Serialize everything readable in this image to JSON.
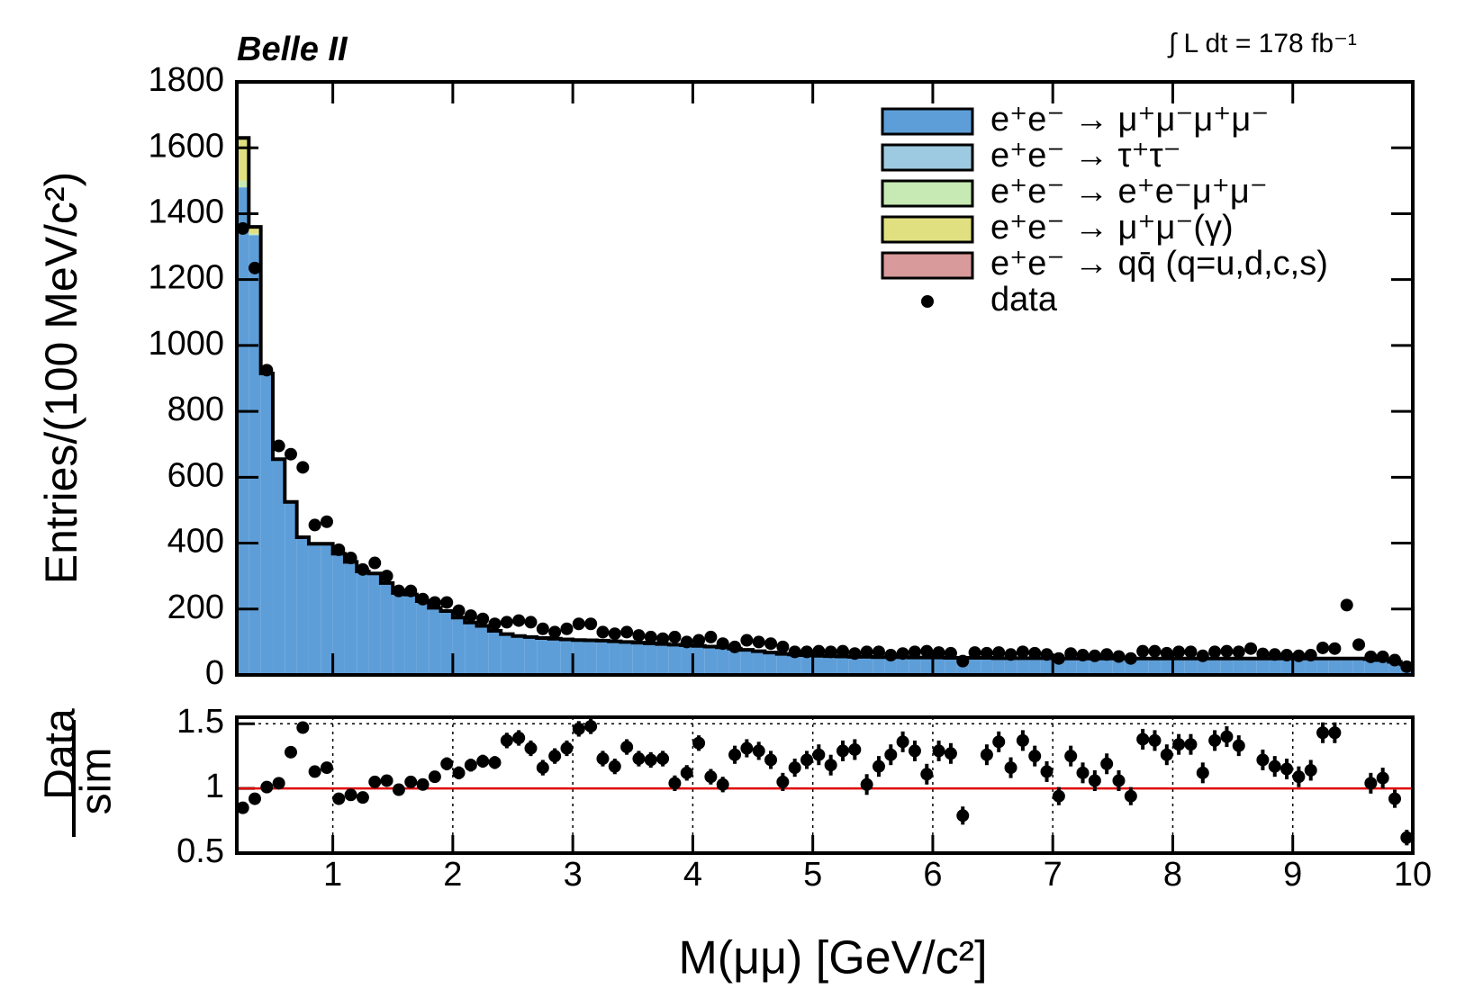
{
  "chart_data": {
    "type": "histogram",
    "title": "Belle II",
    "annotation": "∫ L dt = 178 fb⁻¹",
    "ylabel": "Entries/(100 MeV/c²)",
    "xlabel": "M(μμ) [GeV/c²]",
    "legend": "top right",
    "xlim": [
      0.2,
      10
    ],
    "xticks": [
      1,
      2,
      3,
      4,
      5,
      6,
      7,
      8,
      9,
      10
    ],
    "ylim": [
      0,
      1800
    ],
    "yticks": [
      0,
      200,
      400,
      600,
      800,
      1000,
      1200,
      1400,
      1600,
      1800
    ],
    "bins": [
      0.2,
      0.3,
      0.4,
      0.5,
      0.6,
      0.7,
      0.8,
      0.9,
      1.0,
      1.1,
      1.2,
      1.3,
      1.4,
      1.5,
      1.6,
      1.7,
      1.8,
      1.9,
      2.0,
      2.1,
      2.2,
      2.3,
      2.4,
      2.5,
      2.6,
      2.7,
      2.8,
      2.9,
      3.0,
      3.1,
      3.2,
      3.3,
      3.4,
      3.5,
      3.6,
      3.7,
      3.8,
      3.9,
      4.0,
      4.1,
      4.2,
      4.3,
      4.4,
      4.5,
      4.6,
      4.7,
      4.8,
      4.9,
      5.0,
      5.1,
      5.2,
      5.3,
      5.4,
      5.5,
      5.6,
      5.7,
      5.8,
      5.9,
      6.0,
      6.1,
      6.2,
      6.3,
      6.4,
      6.5,
      6.6,
      6.7,
      6.8,
      6.9,
      7.0,
      7.1,
      7.2,
      7.3,
      7.4,
      7.5,
      7.6,
      7.7,
      7.8,
      7.9,
      8.0,
      8.1,
      8.2,
      8.3,
      8.4,
      8.5,
      8.6,
      8.7,
      8.8,
      8.9,
      9.0,
      9.1,
      9.2,
      9.3,
      9.4,
      9.5,
      9.6,
      9.7,
      9.8,
      9.9,
      10.0
    ],
    "series": [
      {
        "name": "e⁺e⁻ → μ⁺μ⁻μ⁺μ⁻",
        "color": "#5e9ed8",
        "values": [
          1480,
          1335,
          910,
          655,
          525,
          418,
          398,
          398,
          368,
          343,
          314,
          308,
          279,
          249,
          244,
          224,
          204,
          194,
          174,
          159,
          149,
          134,
          124,
          118,
          115,
          112,
          110,
          108,
          106,
          105,
          104,
          102,
          100,
          98,
          96,
          94,
          92,
          90,
          88,
          86,
          84,
          80,
          76,
          72,
          68,
          64,
          62,
          60,
          58,
          57,
          56,
          55,
          55,
          54,
          54,
          54,
          53,
          53,
          53,
          52,
          52,
          52,
          52,
          51,
          51,
          51,
          51,
          51,
          50,
          50,
          50,
          50,
          50,
          50,
          50,
          50,
          50,
          50,
          50,
          50,
          50,
          50,
          50,
          50,
          50,
          50,
          50,
          50,
          50,
          50,
          50,
          50,
          50,
          50,
          48,
          45,
          40,
          32
        ]
      },
      {
        "name": "e⁺e⁻ → τ⁺τ⁻",
        "color": "#9ecae1",
        "values": [
          0,
          0,
          0,
          0,
          0,
          0,
          0,
          0,
          0,
          0,
          0,
          0,
          0,
          0,
          0,
          0,
          0,
          0,
          0,
          0,
          0,
          0,
          0,
          0,
          0,
          0,
          0,
          0,
          0,
          0,
          0,
          0,
          0,
          0,
          0,
          0,
          0,
          0,
          0,
          0,
          0,
          0,
          0,
          0,
          0,
          0,
          0,
          0,
          0,
          0,
          0,
          0,
          0,
          0,
          0,
          0,
          0,
          0,
          0,
          0,
          0,
          0,
          0,
          0,
          0,
          0,
          0,
          0,
          0,
          0,
          0,
          0,
          0,
          0,
          0,
          0,
          0,
          0,
          0,
          0,
          0,
          0,
          0,
          0,
          0,
          0,
          0,
          0,
          0,
          0,
          0,
          0,
          0,
          0,
          0,
          0,
          0,
          0
        ]
      },
      {
        "name": "e⁺e⁻ → e⁺e⁻μ⁺μ⁻",
        "color": "#c7e9b4",
        "values": [
          20,
          5,
          0,
          0,
          0,
          0,
          0,
          0,
          0,
          0,
          0,
          0,
          0,
          0,
          0,
          0,
          0,
          0,
          0,
          0,
          0,
          0,
          0,
          0,
          0,
          0,
          0,
          0,
          0,
          0,
          0,
          0,
          0,
          0,
          0,
          0,
          0,
          0,
          0,
          0,
          0,
          0,
          0,
          0,
          0,
          0,
          0,
          0,
          0,
          0,
          0,
          0,
          0,
          0,
          0,
          0,
          0,
          0,
          0,
          0,
          0,
          0,
          0,
          0,
          0,
          0,
          0,
          0,
          0,
          0,
          0,
          0,
          0,
          0,
          0,
          0,
          0,
          0,
          0,
          0,
          0,
          0,
          0,
          0,
          0,
          0,
          0,
          0,
          0,
          0,
          0,
          0,
          0,
          0,
          0,
          0,
          0,
          0
        ]
      },
      {
        "name": "e⁺e⁻ → μ⁺μ⁻(γ)",
        "color": "#e0e080",
        "values": [
          130,
          20,
          5,
          0,
          0,
          0,
          0,
          0,
          0,
          0,
          0,
          0,
          0,
          0,
          0,
          0,
          0,
          0,
          0,
          0,
          0,
          0,
          0,
          0,
          0,
          0,
          0,
          0,
          0,
          0,
          0,
          0,
          0,
          0,
          0,
          0,
          0,
          0,
          0,
          0,
          0,
          0,
          0,
          0,
          0,
          0,
          0,
          0,
          0,
          0,
          0,
          0,
          0,
          0,
          0,
          0,
          0,
          0,
          0,
          0,
          0,
          0,
          0,
          0,
          0,
          0,
          0,
          0,
          0,
          0,
          0,
          0,
          0,
          0,
          0,
          0,
          0,
          0,
          0,
          0,
          0,
          0,
          0,
          0,
          0,
          0,
          0,
          0,
          0,
          0,
          0,
          0,
          0,
          0,
          0,
          0,
          0,
          0
        ]
      },
      {
        "name": "e⁺e⁻ → qq̄ (q=u,d,c,s)",
        "color": "#d89a9a",
        "values": [
          0,
          0,
          0,
          0,
          0,
          0,
          0,
          0,
          0,
          0,
          0,
          0,
          0,
          0,
          0,
          0,
          0,
          0,
          0,
          0,
          0,
          0,
          0,
          0,
          0,
          0,
          0,
          0,
          0,
          0,
          0,
          0,
          0,
          0,
          0,
          0,
          0,
          0,
          0,
          0,
          0,
          0,
          0,
          0,
          0,
          0,
          0,
          0,
          0,
          0,
          0,
          0,
          0,
          0,
          0,
          0,
          0,
          0,
          0,
          0,
          0,
          0,
          0,
          0,
          0,
          0,
          0,
          0,
          0,
          0,
          0,
          0,
          0,
          0,
          0,
          0,
          0,
          0,
          0,
          0,
          0,
          0,
          0,
          0,
          0,
          0,
          0,
          0,
          0,
          0,
          0,
          0,
          0,
          0,
          0,
          0,
          0,
          0
        ]
      }
    ],
    "data": {
      "name": "data",
      "color": "#000000",
      "values": [
        1355,
        1235,
        925,
        695,
        670,
        630,
        455,
        465,
        380,
        355,
        320,
        340,
        300,
        255,
        255,
        230,
        220,
        220,
        195,
        180,
        170,
        155,
        160,
        165,
        160,
        140,
        130,
        140,
        155,
        155,
        130,
        125,
        130,
        120,
        115,
        110,
        115,
        100,
        105,
        115,
        95,
        85,
        105,
        100,
        95,
        85,
        70,
        70,
        72,
        70,
        72,
        65,
        70,
        70,
        60,
        65,
        70,
        72,
        68,
        66,
        42,
        68,
        66,
        68,
        62,
        70,
        66,
        62,
        50,
        65,
        60,
        58,
        62,
        56,
        50,
        72,
        72,
        66,
        70,
        70,
        58,
        70,
        72,
        70,
        80,
        64,
        62,
        60,
        58,
        60,
        82,
        80,
        212,
        92,
        55,
        55,
        45,
        25
      ]
    },
    "ratio": {
      "label_num": "Data",
      "label_den": "sim",
      "ylim": [
        0.5,
        1.55
      ],
      "yticks": [
        0.5,
        1,
        1.5
      ],
      "reference": 1,
      "reference_color": "#e00000",
      "values": [
        0.85,
        0.92,
        1.01,
        1.04,
        1.28,
        1.47,
        1.13,
        1.16,
        0.92,
        0.95,
        0.93,
        1.05,
        1.06,
        0.99,
        1.05,
        1.03,
        1.09,
        1.19,
        1.12,
        1.18,
        1.21,
        1.2,
        1.37,
        1.39,
        1.31,
        1.16,
        1.25,
        1.31,
        1.46,
        1.48,
        1.23,
        1.17,
        1.32,
        1.23,
        1.22,
        1.23,
        1.04,
        1.12,
        1.35,
        1.09,
        1.03,
        1.26,
        1.31,
        1.29,
        1.22,
        1.05,
        1.16,
        1.22,
        1.26,
        1.18,
        1.29,
        1.3,
        1.03,
        1.17,
        1.26,
        1.36,
        1.29,
        1.11,
        1.29,
        1.27,
        0.79,
        null,
        1.26,
        1.36,
        1.16,
        1.37,
        1.25,
        1.13,
        0.94,
        1.25,
        1.12,
        1.06,
        1.19,
        1.06,
        0.94,
        1.38,
        1.37,
        1.26,
        1.34,
        1.34,
        1.12,
        1.37,
        1.4,
        1.33,
        null,
        1.22,
        1.17,
        1.15,
        1.09,
        1.14,
        1.43,
        1.43,
        null,
        null,
        1.04,
        1.08,
        0.92,
        0.62
      ],
      "errors": [
        0.03,
        0.03,
        0.03,
        0.03,
        0.04,
        0.04,
        0.04,
        0.04,
        0.04,
        0.04,
        0.04,
        0.04,
        0.04,
        0.04,
        0.04,
        0.04,
        0.04,
        0.05,
        0.05,
        0.05,
        0.05,
        0.05,
        0.06,
        0.06,
        0.06,
        0.06,
        0.06,
        0.06,
        0.06,
        0.06,
        0.06,
        0.06,
        0.06,
        0.06,
        0.06,
        0.06,
        0.06,
        0.06,
        0.06,
        0.06,
        0.06,
        0.07,
        0.07,
        0.07,
        0.07,
        0.07,
        0.07,
        0.07,
        0.08,
        0.08,
        0.08,
        0.08,
        0.08,
        0.08,
        0.08,
        0.08,
        0.08,
        0.08,
        0.08,
        0.08,
        0.07,
        null,
        0.08,
        0.08,
        0.08,
        0.08,
        0.08,
        0.08,
        0.07,
        0.08,
        0.08,
        0.08,
        0.08,
        0.08,
        0.07,
        0.08,
        0.08,
        0.08,
        0.08,
        0.08,
        0.08,
        0.08,
        0.08,
        0.08,
        null,
        0.08,
        0.08,
        0.08,
        0.08,
        0.08,
        0.08,
        0.08,
        null,
        null,
        0.08,
        0.08,
        0.07,
        0.06
      ]
    }
  }
}
